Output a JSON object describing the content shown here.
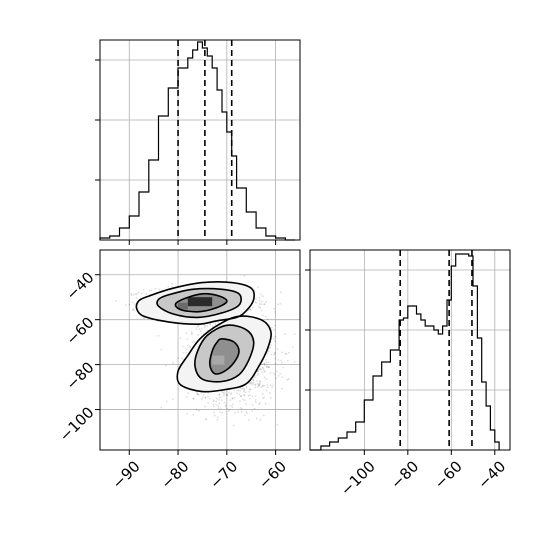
{
  "chart_data": [
    {
      "type": "histogram",
      "panel": "top-left marginal",
      "xlim": [
        -96,
        -55
      ],
      "bin_edges": [
        -96,
        -94,
        -92,
        -90,
        -88,
        -86,
        -84,
        -82,
        -80,
        -78,
        -77,
        -76,
        -75,
        -74,
        -73,
        -72,
        -71,
        -70,
        -69,
        -68,
        -66,
        -64,
        -62,
        -60,
        -58,
        -56
      ],
      "counts": [
        0.01,
        0.02,
        0.06,
        0.12,
        0.24,
        0.4,
        0.62,
        0.76,
        0.86,
        0.91,
        0.95,
        0.99,
        0.96,
        0.92,
        0.86,
        0.75,
        0.64,
        0.54,
        0.42,
        0.26,
        0.14,
        0.06,
        0.02,
        0.01,
        0.0
      ],
      "quantiles": [
        -80,
        -74.5,
        -69
      ],
      "xticks": [
        -90,
        -80,
        -70,
        -60
      ],
      "grid": true
    },
    {
      "type": "scatter",
      "panel": "bottom-left joint",
      "xlim": [
        -96,
        -55
      ],
      "ylim": [
        -118,
        -29
      ],
      "xticks": [
        -90,
        -80,
        -70,
        -60
      ],
      "xtick_labels": [
        "−90",
        "−80",
        "−70",
        "−60"
      ],
      "yticks": [
        -40,
        -60,
        -80,
        -100
      ],
      "ytick_labels": [
        "−40",
        "−60",
        "−80",
        "−100"
      ],
      "clusters": [
        {
          "center": [
            -75.5,
            -52.5
          ],
          "spread": [
            5.5,
            3.5
          ]
        },
        {
          "center": [
            -69,
            -78
          ],
          "spread": [
            4.5,
            10
          ]
        }
      ],
      "contours": [
        {
          "level": "inner",
          "points": [
            [
              -78.5,
              -50.5
            ],
            [
              -75,
              -48.5
            ],
            [
              -71.5,
              -49.5
            ],
            [
              -70,
              -52
            ],
            [
              -72.5,
              -55
            ],
            [
              -76,
              -56.5
            ],
            [
              -79.5,
              -55.5
            ],
            [
              -80.5,
              -53
            ]
          ]
        },
        {
          "level": "inner",
          "points": [
            [
              -71,
              -68.5
            ],
            [
              -68.5,
              -70
            ],
            [
              -67.5,
              -74
            ],
            [
              -68.5,
              -79
            ],
            [
              -70.5,
              -83
            ],
            [
              -72.5,
              -84
            ],
            [
              -73.5,
              -80
            ],
            [
              -73,
              -74
            ],
            [
              -72,
              -70
            ]
          ]
        },
        {
          "level": "middle",
          "points": [
            [
              -82,
              -49
            ],
            [
              -77,
              -46.5
            ],
            [
              -71,
              -46.5
            ],
            [
              -67.5,
              -48.5
            ],
            [
              -67.5,
              -53.5
            ],
            [
              -71,
              -57
            ],
            [
              -76,
              -59
            ],
            [
              -81,
              -57.5
            ],
            [
              -84,
              -54
            ],
            [
              -84,
              -51
            ]
          ]
        },
        {
          "level": "middle",
          "points": [
            [
              -70,
              -62.5
            ],
            [
              -66,
              -64.5
            ],
            [
              -64.5,
              -70
            ],
            [
              -65.5,
              -78
            ],
            [
              -67.5,
              -84.5
            ],
            [
              -71,
              -87.5
            ],
            [
              -75,
              -86.5
            ],
            [
              -76.5,
              -81
            ],
            [
              -76,
              -74
            ],
            [
              -74,
              -67
            ]
          ]
        },
        {
          "level": "outer",
          "points": [
            [
              -86,
              -49.5
            ],
            [
              -81,
              -46
            ],
            [
              -75,
              -43.5
            ],
            [
              -69,
              -43.5
            ],
            [
              -65,
              -46
            ],
            [
              -64.5,
              -51
            ],
            [
              -66,
              -56
            ],
            [
              -68,
              -59
            ],
            [
              -72,
              -60.5
            ],
            [
              -76,
              -62
            ],
            [
              -82,
              -61
            ],
            [
              -87,
              -58.5
            ],
            [
              -88.5,
              -55
            ],
            [
              -88,
              -51.5
            ]
          ]
        },
        {
          "level": "outer",
          "points": [
            [
              -67.5,
              -58.5
            ],
            [
              -63,
              -60
            ],
            [
              -61,
              -65
            ],
            [
              -61.5,
              -72
            ],
            [
              -63.5,
              -81
            ],
            [
              -66,
              -88.5
            ],
            [
              -70,
              -91
            ],
            [
              -75,
              -92
            ],
            [
              -79.5,
              -89
            ],
            [
              -80,
              -83
            ],
            [
              -78,
              -76
            ],
            [
              -75.5,
              -68.5
            ],
            [
              -71.5,
              -62
            ]
          ]
        }
      ],
      "grid": true
    },
    {
      "type": "histogram",
      "panel": "bottom-right marginal",
      "xlim": [
        -125,
        -33
      ],
      "bin_edges": [
        -125,
        -120,
        -116,
        -112,
        -108,
        -104,
        -100,
        -96,
        -92,
        -88,
        -84,
        -82,
        -80,
        -78,
        -76,
        -74,
        -72,
        -70,
        -68,
        -66,
        -64,
        -62,
        -60,
        -58,
        -56,
        -54,
        -52,
        -50,
        -48,
        -46,
        -44,
        -42,
        -40,
        -38
      ],
      "counts": [
        0.0,
        0.02,
        0.04,
        0.06,
        0.09,
        0.14,
        0.25,
        0.37,
        0.44,
        0.5,
        0.65,
        0.66,
        0.72,
        0.72,
        0.68,
        0.65,
        0.62,
        0.62,
        0.6,
        0.58,
        0.62,
        0.75,
        0.92,
        0.98,
        0.98,
        0.98,
        0.97,
        0.82,
        0.56,
        0.34,
        0.22,
        0.1,
        0.04
      ],
      "quantiles": [
        -83.5,
        -61,
        -50.5
      ],
      "xticks": [
        -100,
        -80,
        -60,
        -40
      ],
      "xtick_labels": [
        "−100",
        "−80",
        "−60",
        "−40"
      ],
      "grid": true
    }
  ]
}
